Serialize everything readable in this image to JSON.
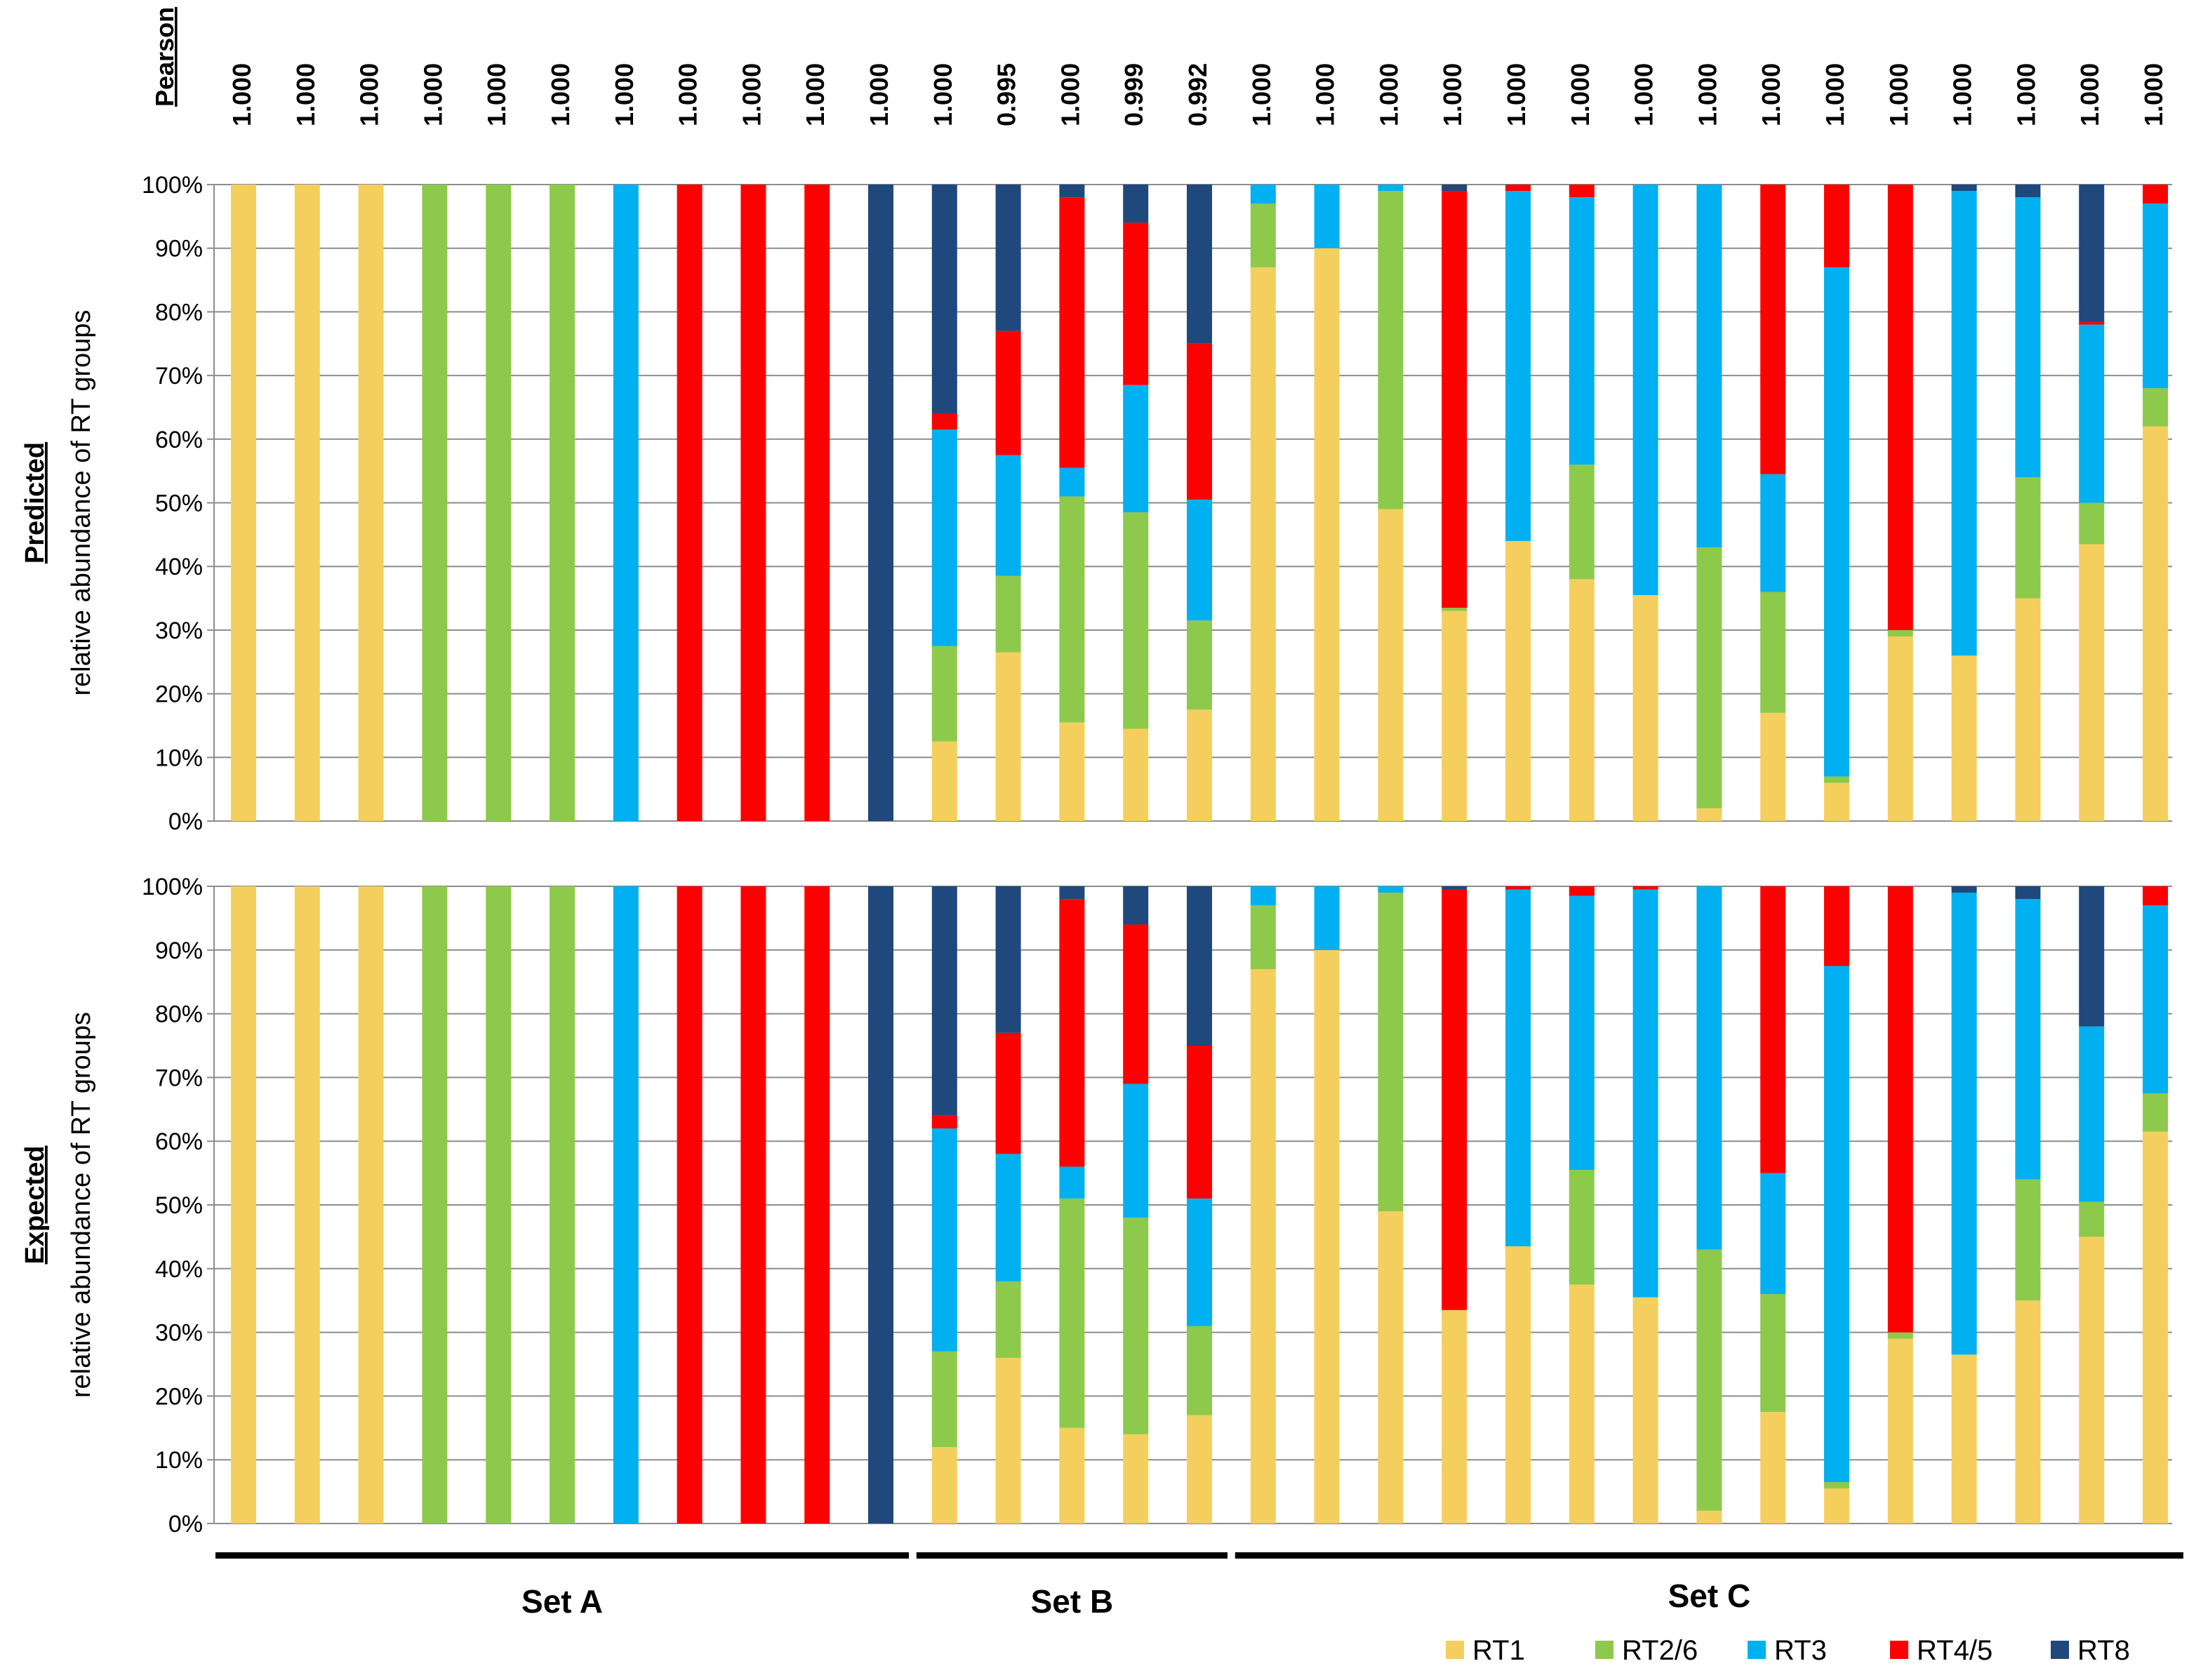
{
  "chart_data": {
    "type": "bar",
    "stacked": true,
    "colors": {
      "RT1": "#F5CF5E",
      "RT2/6": "#8DC94A",
      "RT3": "#00B0F0",
      "RT4/5": "#FF0000",
      "RT8": "#1F497D"
    },
    "series_names": [
      "RT1",
      "RT2/6",
      "RT3",
      "RT4/5",
      "RT8"
    ],
    "pearson_header": "Pearson",
    "pearson": [
      "1.000",
      "1.000",
      "1.000",
      "1.000",
      "1.000",
      "1.000",
      "1.000",
      "1.000",
      "1.000",
      "1.000",
      "1.000",
      "1.000",
      "0.995",
      "1.000",
      "0.999",
      "0.992",
      "1.000",
      "1.000",
      "1.000",
      "1.000",
      "1.000",
      "1.000",
      "1.000",
      "1.000",
      "1.000",
      "1.000",
      "1.000",
      "1.000",
      "1.000",
      "1.000",
      "1.000"
    ],
    "y_ticks": [
      "0%",
      "10%",
      "20%",
      "30%",
      "40%",
      "50%",
      "60%",
      "70%",
      "80%",
      "90%",
      "100%"
    ],
    "ylim": [
      0,
      100
    ],
    "panels": [
      {
        "ylabel_emph": "Predicted",
        "ylabel": "relative abundance  of RT groups",
        "bars": [
          [
            100,
            0,
            0,
            0,
            0
          ],
          [
            100,
            0,
            0,
            0,
            0
          ],
          [
            100,
            0,
            0,
            0,
            0
          ],
          [
            0,
            100,
            0,
            0,
            0
          ],
          [
            0,
            100,
            0,
            0,
            0
          ],
          [
            0,
            100,
            0,
            0,
            0
          ],
          [
            0,
            0,
            100,
            0,
            0
          ],
          [
            0,
            0,
            0,
            100,
            0
          ],
          [
            0,
            0,
            0,
            100,
            0
          ],
          [
            0,
            0,
            0,
            100,
            0
          ],
          [
            0,
            0,
            0,
            0,
            100
          ],
          [
            12.5,
            15,
            34,
            2.5,
            36
          ],
          [
            26.5,
            12,
            19,
            19.5,
            23
          ],
          [
            15.5,
            35.5,
            4.5,
            42.5,
            2
          ],
          [
            14.5,
            34,
            20,
            25.5,
            6
          ],
          [
            17.5,
            14,
            19,
            24.5,
            25
          ],
          [
            87,
            10,
            3,
            0,
            0
          ],
          [
            90,
            0,
            10,
            0,
            0
          ],
          [
            49,
            50,
            1,
            0,
            0
          ],
          [
            33,
            0.5,
            0,
            65.5,
            1
          ],
          [
            44,
            0,
            55,
            1,
            0
          ],
          [
            38,
            18,
            42,
            2,
            0
          ],
          [
            35.5,
            0,
            64.5,
            0,
            0
          ],
          [
            2,
            41,
            57,
            0,
            0
          ],
          [
            17,
            19,
            18.5,
            45.5,
            0
          ],
          [
            6,
            1,
            80,
            13,
            0
          ],
          [
            29,
            1,
            0,
            70,
            0
          ],
          [
            26,
            0,
            73,
            0,
            1
          ],
          [
            35,
            19,
            44,
            0,
            2
          ],
          [
            43.5,
            6.5,
            28,
            0.5,
            21.5
          ],
          [
            62,
            6,
            29,
            3,
            0
          ]
        ]
      },
      {
        "ylabel_emph": "Expected",
        "ylabel": "relative abundance  of RT groups",
        "bars": [
          [
            100,
            0,
            0,
            0,
            0
          ],
          [
            100,
            0,
            0,
            0,
            0
          ],
          [
            100,
            0,
            0,
            0,
            0
          ],
          [
            0,
            100,
            0,
            0,
            0
          ],
          [
            0,
            100,
            0,
            0,
            0
          ],
          [
            0,
            100,
            0,
            0,
            0
          ],
          [
            0,
            0,
            100,
            0,
            0
          ],
          [
            0,
            0,
            0,
            100,
            0
          ],
          [
            0,
            0,
            0,
            100,
            0
          ],
          [
            0,
            0,
            0,
            100,
            0
          ],
          [
            0,
            0,
            0,
            0,
            100
          ],
          [
            12,
            15,
            35,
            2,
            36
          ],
          [
            26,
            12,
            20,
            19,
            23
          ],
          [
            15,
            36,
            5,
            42,
            2
          ],
          [
            14,
            34,
            21,
            25,
            6
          ],
          [
            17,
            14,
            20,
            24,
            25
          ],
          [
            87,
            10,
            3,
            0,
            0
          ],
          [
            90,
            0,
            10,
            0,
            0
          ],
          [
            49,
            50,
            1,
            0,
            0
          ],
          [
            33.5,
            0,
            0,
            66,
            0.5
          ],
          [
            43.5,
            0,
            56,
            0.5,
            0
          ],
          [
            37.5,
            18,
            43,
            1.5,
            0
          ],
          [
            35.5,
            0,
            64,
            0.5,
            0
          ],
          [
            2,
            41,
            57,
            0,
            0
          ],
          [
            17.5,
            18.5,
            19,
            45,
            0
          ],
          [
            5.5,
            1,
            81,
            12.5,
            0
          ],
          [
            29,
            1,
            0,
            70,
            0
          ],
          [
            26.5,
            0,
            72.5,
            0,
            1
          ],
          [
            35,
            19,
            44,
            0,
            2
          ],
          [
            45,
            5.5,
            27.5,
            0,
            22
          ],
          [
            61.5,
            6,
            29.5,
            3,
            0
          ]
        ]
      }
    ],
    "sets": [
      {
        "label": "Set A",
        "first": 0,
        "last": 10
      },
      {
        "label": "Set B",
        "first": 11,
        "last": 15
      },
      {
        "label": "Set C",
        "first": 16,
        "last": 30
      }
    ],
    "legend_position": "bottom-right"
  }
}
